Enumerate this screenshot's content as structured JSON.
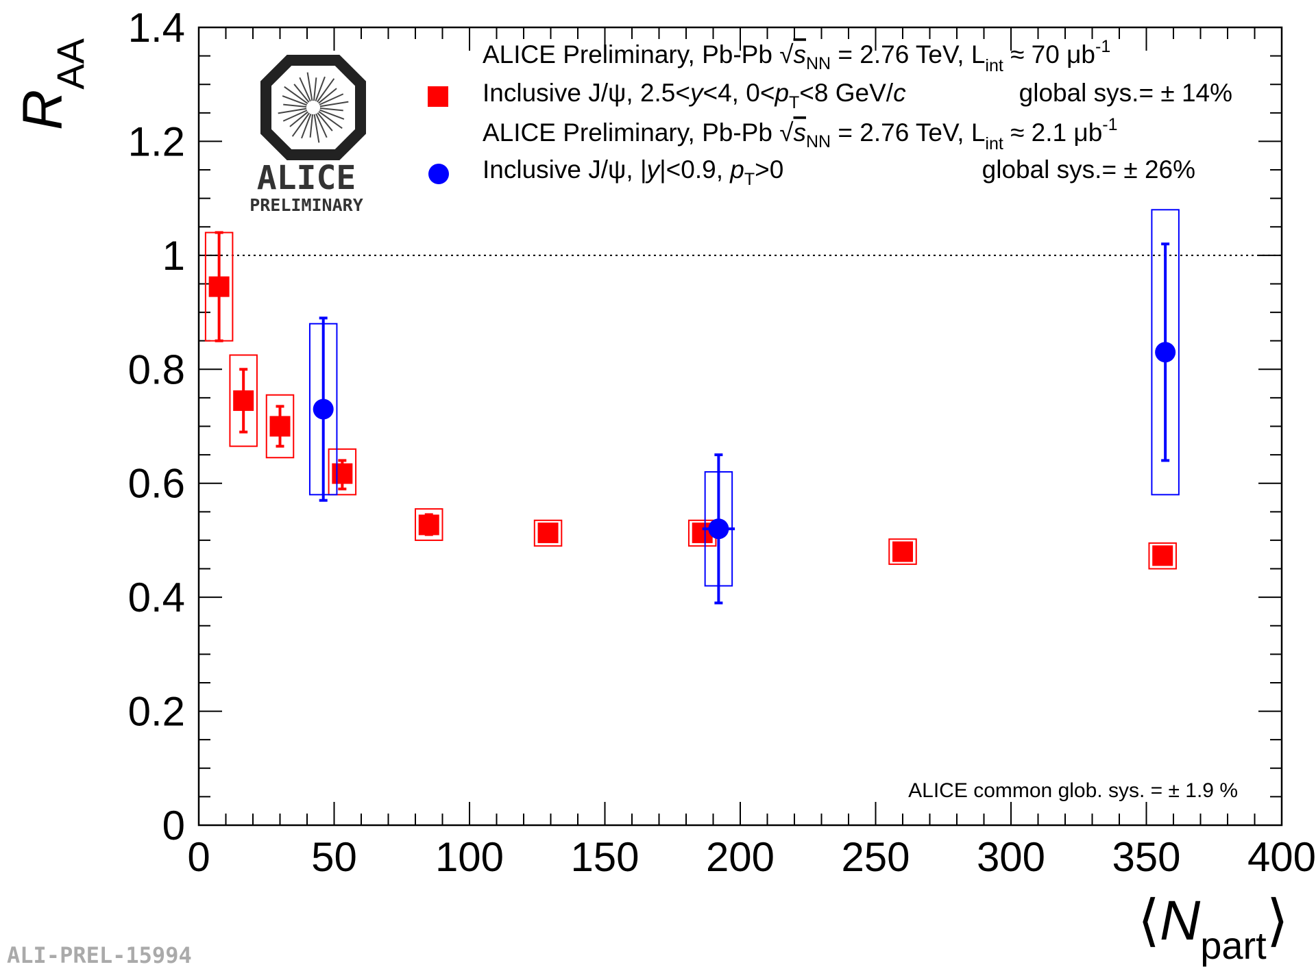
{
  "chart_data": {
    "type": "scatter",
    "xlabel_main": "N",
    "xlabel_sub": "part",
    "ylabel_main": "R",
    "ylabel_sub": "AA",
    "xlim": [
      0,
      400
    ],
    "ylim": [
      0,
      1.4
    ],
    "x_ticks": [
      "0",
      "50",
      "100",
      "150",
      "200",
      "250",
      "300",
      "350",
      "400"
    ],
    "y_ticks": [
      "0",
      "0.2",
      "0.4",
      "0.6",
      "0.8",
      "1",
      "1.2",
      "1.4"
    ],
    "reference_line": 1,
    "series": [
      {
        "name": "Inclusive J/ψ, 2.5<y<4, 0<pT<8 GeV/c",
        "color": "#ff0000",
        "marker": "square",
        "points": [
          {
            "x": 7.5,
            "y": 0.945,
            "stat_lo": 0.85,
            "stat_hi": 1.04,
            "sys_lo": 0.85,
            "sys_hi": 1.04,
            "xerr": 5
          },
          {
            "x": 16.5,
            "y": 0.745,
            "stat_lo": 0.69,
            "stat_hi": 0.8,
            "sys_lo": 0.665,
            "sys_hi": 0.825,
            "xerr": 5
          },
          {
            "x": 30,
            "y": 0.7,
            "stat_lo": 0.665,
            "stat_hi": 0.735,
            "sys_lo": 0.645,
            "sys_hi": 0.755,
            "xerr": 5
          },
          {
            "x": 53,
            "y": 0.617,
            "stat_lo": 0.59,
            "stat_hi": 0.64,
            "sys_lo": 0.58,
            "sys_hi": 0.66,
            "xerr": 5
          },
          {
            "x": 85,
            "y": 0.527,
            "stat_lo": 0.51,
            "stat_hi": 0.545,
            "sys_lo": 0.5,
            "sys_hi": 0.555,
            "xerr": 5
          },
          {
            "x": 129,
            "y": 0.513,
            "stat_lo": 0.5,
            "stat_hi": 0.525,
            "sys_lo": 0.49,
            "sys_hi": 0.535,
            "xerr": 5
          },
          {
            "x": 186,
            "y": 0.513,
            "stat_lo": 0.5,
            "stat_hi": 0.525,
            "sys_lo": 0.49,
            "sys_hi": 0.535,
            "xerr": 5
          },
          {
            "x": 260,
            "y": 0.48,
            "stat_lo": 0.465,
            "stat_hi": 0.495,
            "sys_lo": 0.458,
            "sys_hi": 0.502,
            "xerr": 5
          },
          {
            "x": 356,
            "y": 0.473,
            "stat_lo": 0.46,
            "stat_hi": 0.487,
            "sys_lo": 0.45,
            "sys_hi": 0.495,
            "xerr": 5
          }
        ]
      },
      {
        "name": "Inclusive J/ψ, |y|<0.9, pT>0",
        "color": "#0000ff",
        "marker": "circle",
        "points": [
          {
            "x": 46,
            "y": 0.73,
            "stat_lo": 0.57,
            "stat_hi": 0.89,
            "sys_lo": 0.58,
            "sys_hi": 0.88,
            "xerr": 5,
            "xbar": 0
          },
          {
            "x": 192,
            "y": 0.52,
            "stat_lo": 0.39,
            "stat_hi": 0.65,
            "sys_lo": 0.42,
            "sys_hi": 0.62,
            "xerr": 5,
            "xbar": 6
          },
          {
            "x": 357,
            "y": 0.83,
            "stat_lo": 0.64,
            "stat_hi": 1.02,
            "sys_lo": 0.58,
            "sys_hi": 1.08,
            "xerr": 5,
            "xbar": 0
          }
        ]
      }
    ],
    "legend": [
      {
        "header_pre": "ALICE Preliminary, Pb-Pb ",
        "sqrt": "s",
        "sqrt_sub": "NN",
        "header_mid": " = 2.76 TeV, L",
        "lumi_sub": "int",
        "header_post": " ≈ 70 μb",
        "lumi_sup": "-1",
        "entry_a": "Inclusive J/ψ, 2.5<",
        "entry_y": "y",
        "entry_b": "<4, 0<",
        "entry_p": "p",
        "entry_psub": "T",
        "entry_c": "<8 GeV/",
        "entry_cv": "c",
        "sys": "global sys.= ± 14%"
      },
      {
        "header_pre": "ALICE Preliminary, Pb-Pb ",
        "sqrt": "s",
        "sqrt_sub": "NN",
        "header_mid": " = 2.76 TeV, L",
        "lumi_sub": "int",
        "header_post": " ≈ 2.1 μb",
        "lumi_sup": "-1",
        "entry_a": "Inclusive J/ψ, |",
        "entry_y": "y",
        "entry_b": "|<0.9, ",
        "entry_p": "p",
        "entry_psub": "T",
        "entry_c": ">0",
        "sys": "global sys.= ± 26%"
      }
    ],
    "annotations": {
      "common_sys": "ALICE common glob. sys. = ± 1.9 %",
      "figure_id": "ALI-PREL-15994",
      "logo_text": "ALICE",
      "logo_subtext": "PRELIMINARY"
    }
  }
}
